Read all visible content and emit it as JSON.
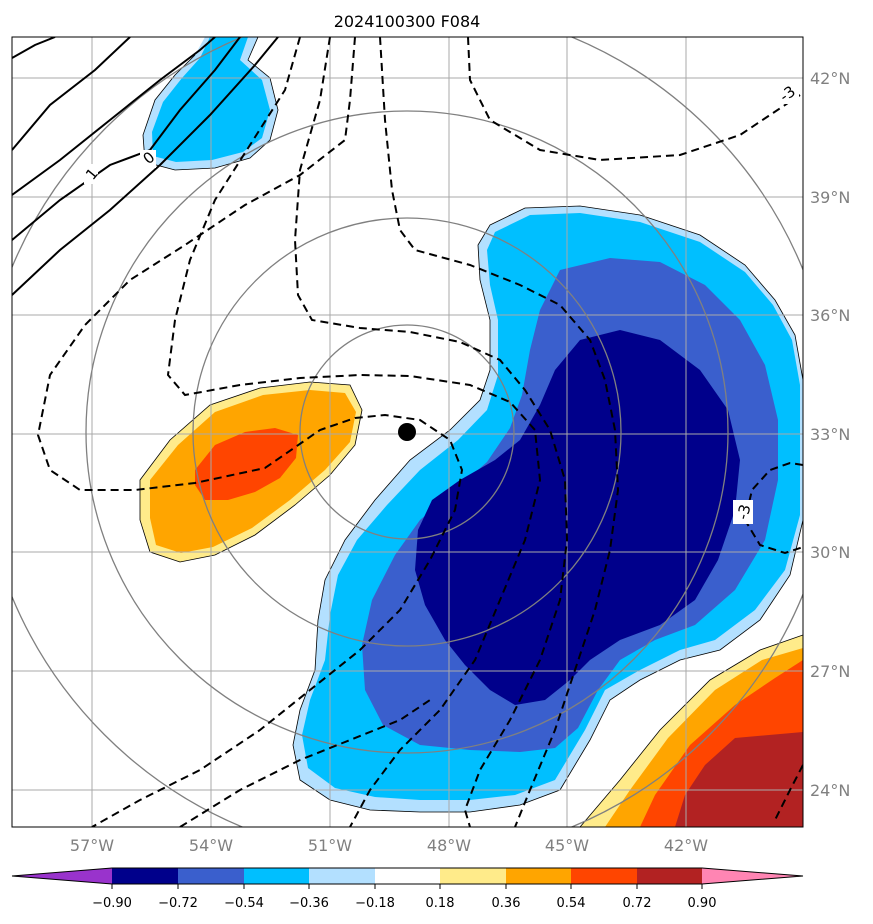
{
  "title": "2024100300 F084",
  "lon_labels": [
    "57°W",
    "54°W",
    "51°W",
    "48°W",
    "45°W",
    "42°W"
  ],
  "lat_labels": [
    "42°N",
    "39°N",
    "36°N",
    "33°N",
    "30°N",
    "27°N",
    "24°N"
  ],
  "contour_labels": [
    "-3",
    "0",
    "1",
    "-3"
  ],
  "colorbar": {
    "tick_labels": [
      "−0.90",
      "−0.72",
      "−0.54",
      "−0.36",
      "−0.18",
      "0.18",
      "0.36",
      "0.54",
      "0.72",
      "0.90"
    ],
    "colors": [
      "#9933cc",
      "#00008b",
      "#3a5fcd",
      "#00bfff",
      "#b3e0ff",
      "#ffffff",
      "#ffeb8a",
      "#ffa500",
      "#ff4500",
      "#b22222",
      "#ff85b3"
    ]
  },
  "storm_center": {
    "lon": -49.0,
    "lat": 33.0
  }
}
